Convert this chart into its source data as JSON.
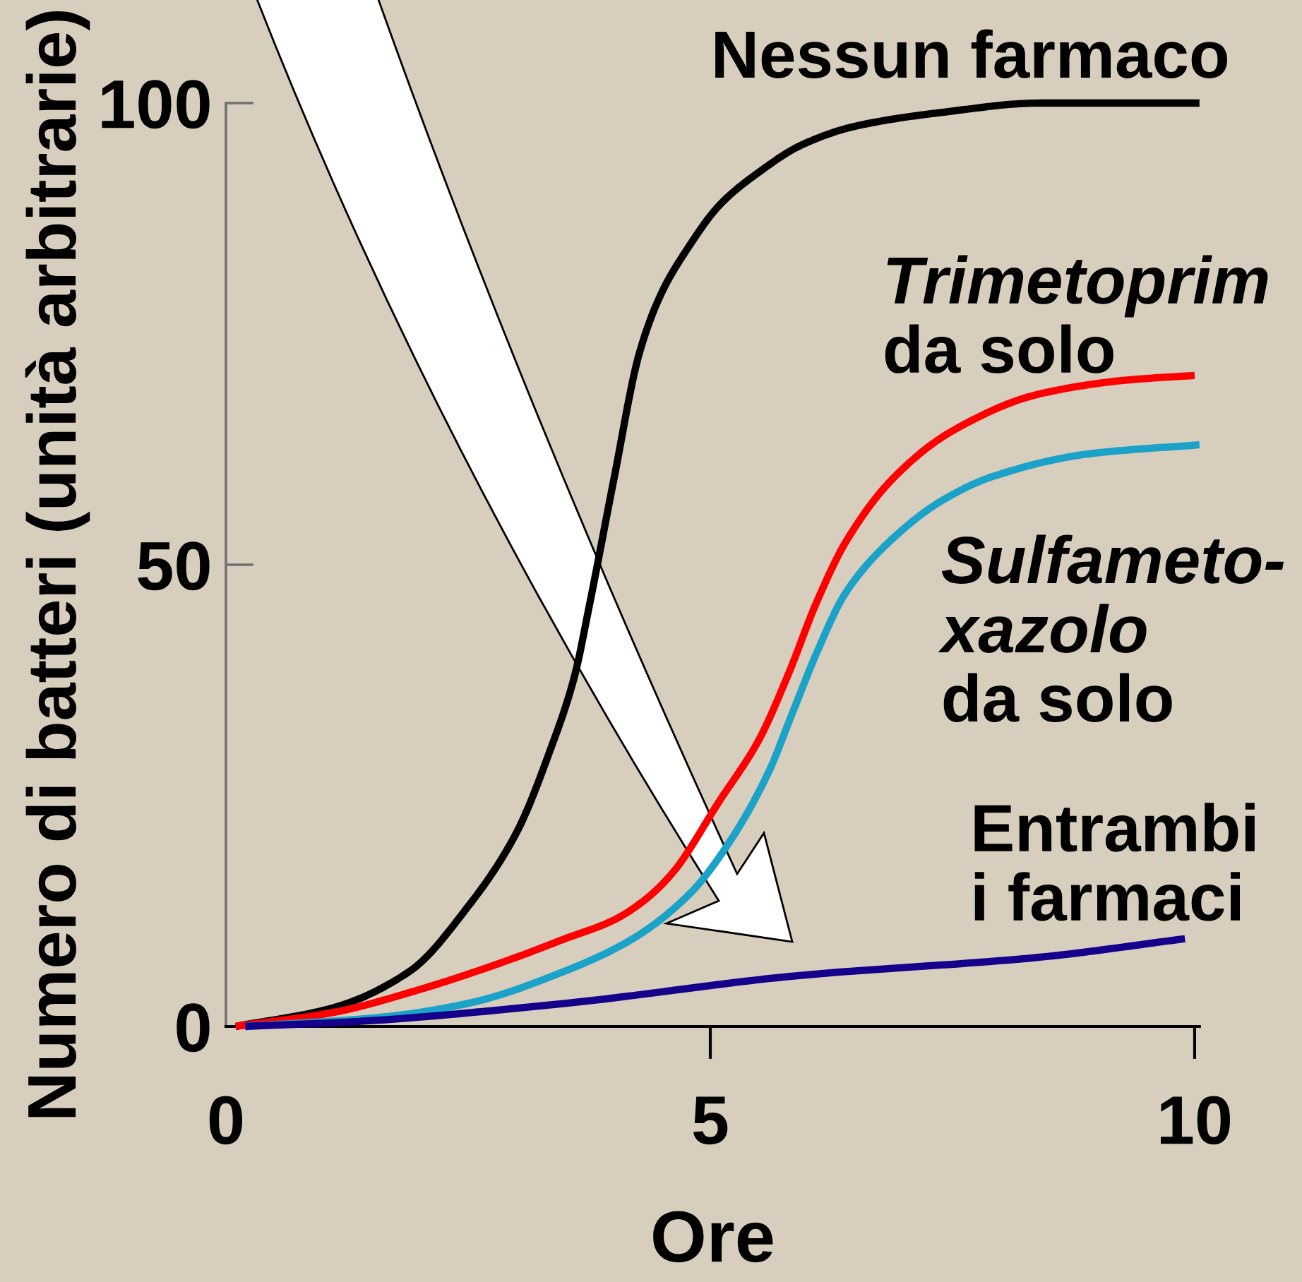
{
  "chart_data": {
    "type": "line",
    "xlabel": "Ore",
    "ylabel": "Numero di batteri (unità arbitrarie)",
    "xlim": [
      0,
      10.05
    ],
    "ylim": [
      0,
      100
    ],
    "xticks": [
      0,
      5,
      10
    ],
    "yticks": [
      0,
      50,
      100
    ],
    "line_style": "solid",
    "series": [
      {
        "name": "Nessun farmaco",
        "color": "#000000",
        "x": [
          0.1,
          1.1,
          1.9,
          2.5,
          3.0,
          3.35,
          3.6,
          3.75,
          4.0,
          4.27,
          4.5,
          4.75,
          5.1,
          5.5,
          5.95,
          6.5,
          7.4,
          8.4,
          10.05
        ],
        "values": [
          0,
          2,
          6,
          13,
          21,
          30,
          38,
          45.5,
          59,
          73,
          79.5,
          84,
          89,
          92.5,
          95.5,
          97.5,
          99,
          100,
          100
        ]
      },
      {
        "name": "Trimetoprim\nda solo",
        "color": "#ff0000",
        "x": [
          0.1,
          1.1,
          2.0,
          3.0,
          3.5,
          4.0,
          4.3,
          4.6,
          5.1,
          5.5,
          5.8,
          6.1,
          6.4,
          6.9,
          7.5,
          8.4,
          9.3,
          10.0
        ],
        "values": [
          0,
          1.5,
          4,
          7.5,
          9.5,
          11.5,
          13.5,
          16.5,
          24.5,
          31,
          38,
          46,
          52.5,
          59.5,
          64.5,
          68.5,
          70,
          70.5
        ]
      },
      {
        "name": "Sulfameto-\nxazolo\nda solo",
        "color": "#1aa2c8",
        "x": [
          0.2,
          1.6,
          2.5,
          3.5,
          4.2,
          4.8,
          5.2,
          5.6,
          5.85,
          6.1,
          6.4,
          6.9,
          7.4,
          7.9,
          8.9,
          10.05
        ],
        "values": [
          0,
          1,
          2.5,
          6,
          9.5,
          14.5,
          20,
          27.5,
          34,
          40.5,
          47,
          53,
          57,
          59.5,
          62,
          63
        ]
      },
      {
        "name": "Entrambi\ni farmaci",
        "color": "#14008a",
        "x": [
          0.2,
          1.3,
          3.5,
          5.9,
          8.4,
          9.9
        ],
        "values": [
          0,
          0.5,
          2.5,
          5.5,
          7.5,
          9.5
        ]
      }
    ]
  }
}
